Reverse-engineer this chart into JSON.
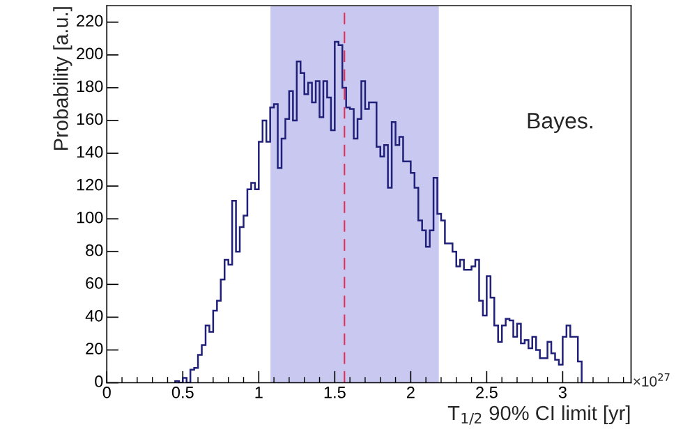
{
  "chart_data": {
    "type": "histogram",
    "xlabel": "T$_{1/2}$ 90% CI limit [yr]",
    "ylabel": "Probability [a.u.]",
    "annotations": [
      "Bayes.",
      "×10$^{27}$"
    ],
    "color": "#20207a",
    "bins": [
      0.45,
      0.475,
      0.5,
      0.525,
      0.55,
      0.575,
      0.6,
      0.625,
      0.65,
      0.675,
      0.7,
      0.725,
      0.75,
      0.775,
      0.8,
      0.825,
      0.85,
      0.875,
      0.9,
      0.925,
      0.95,
      0.975,
      1.0,
      1.025,
      1.05,
      1.075,
      1.1,
      1.125,
      1.15,
      1.175,
      1.2,
      1.225,
      1.25,
      1.275,
      1.3,
      1.325,
      1.35,
      1.375,
      1.4,
      1.425,
      1.45,
      1.475,
      1.5,
      1.525,
      1.55,
      1.575,
      1.6,
      1.625,
      1.65,
      1.675,
      1.7,
      1.725,
      1.75,
      1.775,
      1.8,
      1.825,
      1.85,
      1.875,
      1.9,
      1.925,
      1.95,
      1.975,
      2.0,
      2.025,
      2.05,
      2.075,
      2.1,
      2.125,
      2.15,
      2.175,
      2.2,
      2.225,
      2.25,
      2.275,
      2.3,
      2.325,
      2.35,
      2.375,
      2.4,
      2.425,
      2.45,
      2.475,
      2.5,
      2.525,
      2.55,
      2.575,
      2.6,
      2.625,
      2.65,
      2.675,
      2.7,
      2.725,
      2.75,
      2.775,
      2.8,
      2.825,
      2.85,
      2.875,
      2.9,
      2.925,
      2.95,
      2.975,
      3.0,
      3.025,
      3.05,
      3.075,
      3.1,
      3.125
    ],
    "values": [
      1,
      0,
      3,
      0,
      8,
      9,
      17,
      23,
      35,
      31,
      44,
      50,
      63,
      75,
      72,
      111,
      80,
      95,
      102,
      118,
      122,
      118,
      147,
      160,
      147,
      168,
      170,
      131,
      149,
      161,
      178,
      160,
      196,
      189,
      176,
      183,
      171,
      184,
      162,
      184,
      174,
      154,
      208,
      206,
      180,
      168,
      167,
      149,
      161,
      184,
      167,
      171,
      171,
      144,
      138,
      145,
      119,
      159,
      145,
      150,
      135,
      135,
      128,
      119,
      99,
      93,
      83,
      93,
      125,
      103,
      99,
      85,
      85,
      80,
      71,
      75,
      69,
      69,
      71,
      75,
      50,
      41,
      65,
      52,
      35,
      25,
      35,
      39,
      38,
      28,
      36,
      24,
      26,
      21,
      28,
      20,
      15,
      15,
      25,
      18,
      14,
      11,
      28,
      35,
      28,
      28,
      13
    ],
    "xlim": [
      0,
      3.45
    ],
    "ylim": [
      0,
      230
    ],
    "xticks": [
      0,
      0.5,
      1,
      1.5,
      2,
      2.5,
      3
    ],
    "yticks": [
      0,
      20,
      40,
      60,
      80,
      100,
      120,
      140,
      160,
      180,
      200,
      220
    ],
    "ref_lines": [
      {
        "axis": "x",
        "value": 1.564,
        "color": "#e0305a",
        "line_style": "dashed"
      }
    ],
    "bands": [
      {
        "axis": "x",
        "from": 1.077,
        "to": 2.185,
        "color": "#c8c8f0"
      }
    ],
    "grid": false,
    "legend": false
  }
}
